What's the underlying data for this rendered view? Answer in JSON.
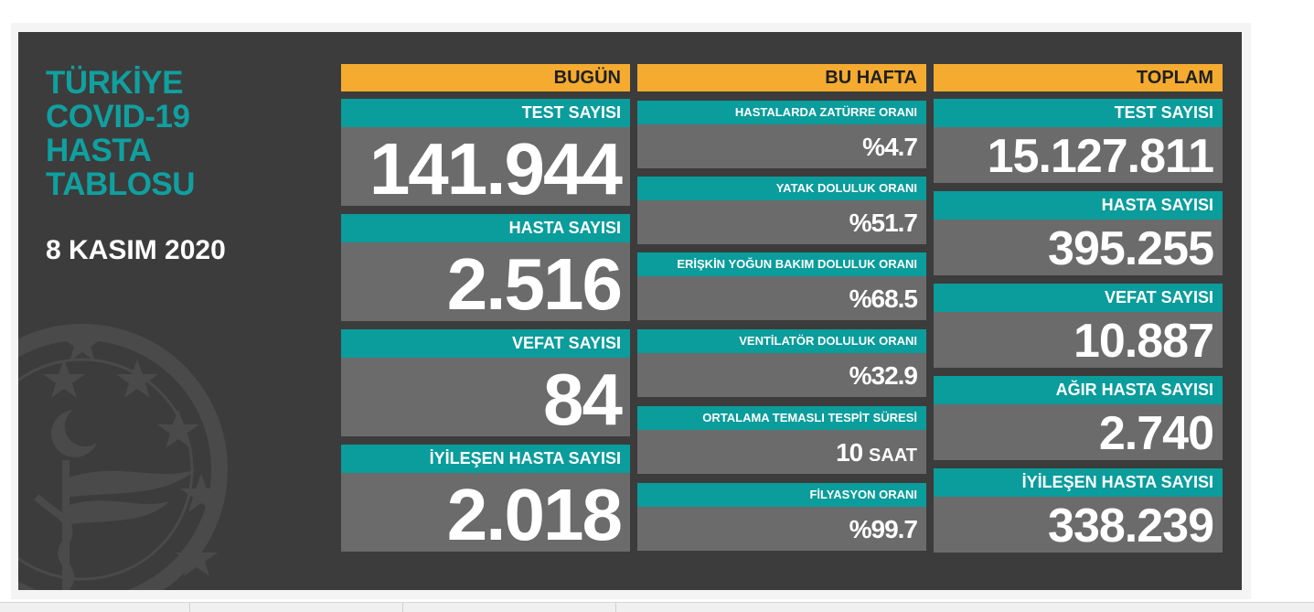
{
  "title_lines": [
    "TÜRKİYE",
    "COVID-19",
    "HASTA",
    "TABLOSU"
  ],
  "date": "8 KASIM 2020",
  "colors": {
    "teal": "#0b9c9c",
    "orange": "#f4ab2f",
    "board": "#3c3c3c",
    "value_bg": "#6b6b6b"
  },
  "emblem_icon": "ministry-of-health-emblem-icon",
  "bugun": {
    "header": "BUGÜN",
    "items": [
      {
        "label": "TEST SAYISI",
        "value": "141.944"
      },
      {
        "label": "HASTA SAYISI",
        "value": "2.516"
      },
      {
        "label": "VEFAT SAYISI",
        "value": "84"
      },
      {
        "label": "İYİLEŞEN HASTA SAYISI",
        "value": "2.018"
      }
    ]
  },
  "bu_hafta": {
    "header": "BU HAFTA",
    "items": [
      {
        "label": "HASTALARDA ZATÜRRE ORANI",
        "value": "%4.7",
        "unit": ""
      },
      {
        "label": "YATAK DOLULUK ORANI",
        "value": "%51.7",
        "unit": ""
      },
      {
        "label": "ERİŞKİN YOĞUN BAKIM DOLULUK ORANI",
        "value": "%68.5",
        "unit": ""
      },
      {
        "label": "VENTİLATÖR DOLULUK ORANI",
        "value": "%32.9",
        "unit": ""
      },
      {
        "label": "ORTALAMA TEMASLI TESPİT SÜRESİ",
        "value": "10",
        "unit": "SAAT"
      },
      {
        "label": "FİLYASYON ORANI",
        "value": "%99.7",
        "unit": ""
      }
    ]
  },
  "toplam": {
    "header": "TOPLAM",
    "items": [
      {
        "label": "TEST SAYISI",
        "value": "15.127.811"
      },
      {
        "label": "HASTA SAYISI",
        "value": "395.255"
      },
      {
        "label": "VEFAT SAYISI",
        "value": "10.887"
      },
      {
        "label": "AĞIR HASTA SAYISI",
        "value": "2.740"
      },
      {
        "label": "İYİLEŞEN HASTA SAYISI",
        "value": "338.239"
      }
    ]
  }
}
